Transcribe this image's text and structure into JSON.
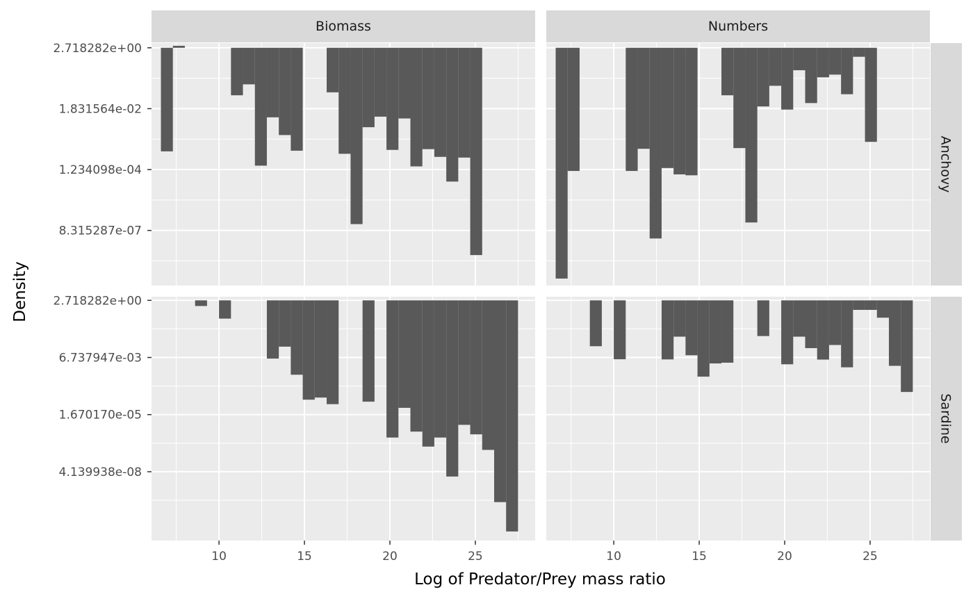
{
  "chart_data": {
    "type": "bar",
    "xlabel": "Log of Predator/Prey mass ratio",
    "ylabel": "Density",
    "y_scale": "log",
    "colors": {
      "bar": "#595959",
      "panel": "#ebebeb",
      "strip": "#d9d9d9",
      "grid": "#ffffff"
    },
    "xlim": [
      6.05,
      28.5
    ],
    "x_ticks": [
      10,
      15,
      20,
      25
    ],
    "x_tick_labels": [
      "10",
      "15",
      "20",
      "25"
    ],
    "columns": [
      "Biomass",
      "Numbers"
    ],
    "rows": [
      "Anchovy",
      "Sardine"
    ],
    "row_axes": [
      {
        "row": "Anchovy",
        "ylim": [
          9e-09,
          4.0
        ],
        "y_ticks": [
          2.718282,
          0.01831564,
          0.0001234098,
          8.315287e-07
        ],
        "y_tick_labels": [
          "2.718282e+00",
          "1.831564e-02",
          "1.234098e-04",
          "8.315287e-07"
        ]
      },
      {
        "row": "Sardine",
        "ylim": [
          3e-11,
          4.0
        ],
        "y_ticks": [
          2.718282,
          0.006737947,
          1.67017e-05,
          4.139938e-08
        ],
        "y_tick_labels": [
          "2.718282e+00",
          "6.737947e-03",
          "1.670170e-05",
          "4.139938e-08"
        ]
      }
    ],
    "panels": [
      {
        "row": "Anchovy",
        "column": "Biomass",
        "x": [
          6.95,
          7.65,
          11.05,
          11.75,
          12.45,
          13.15,
          13.85,
          14.55,
          16.65,
          17.35,
          18.05,
          18.75,
          19.45,
          20.15,
          20.85,
          21.55,
          22.25,
          22.95,
          23.65,
          24.35,
          25.05
        ],
        "y": [
          0.00055,
          3.2,
          0.055,
          0.135,
          0.00017,
          0.009,
          0.0021,
          0.00058,
          0.07,
          0.00045,
          1.4e-06,
          0.004,
          0.0095,
          0.00062,
          0.0082,
          0.00016,
          0.00066,
          0.00035,
          4.6e-05,
          0.00033,
          1.1e-07
        ]
      },
      {
        "row": "Anchovy",
        "column": "Numbers",
        "x": [
          6.95,
          7.65,
          11.05,
          11.75,
          12.45,
          13.15,
          13.85,
          14.55,
          16.65,
          17.35,
          18.05,
          18.75,
          19.45,
          20.15,
          20.85,
          21.55,
          22.25,
          22.95,
          23.65,
          24.35,
          25.05
        ],
        "y": [
          1.6e-08,
          0.00011,
          0.00011,
          0.00068,
          4.3e-07,
          0.00014,
          8.3e-05,
          7.7e-05,
          0.055,
          0.00072,
          1.6e-06,
          0.022,
          0.12,
          0.017,
          0.43,
          0.029,
          0.24,
          0.3,
          0.06,
          1.3,
          0.0012
        ]
      },
      {
        "row": "Sardine",
        "column": "Biomass",
        "x": [
          8.95,
          10.35,
          13.15,
          13.85,
          14.55,
          15.25,
          15.95,
          16.65,
          18.75,
          20.15,
          20.85,
          21.55,
          22.25,
          22.95,
          23.65,
          24.35,
          25.05,
          25.75,
          26.45,
          27.15
        ],
        "y": [
          1.5,
          0.4,
          0.006,
          0.021,
          0.0011,
          8e-05,
          0.0001,
          5e-05,
          6.5e-05,
          1.5e-06,
          3.4e-05,
          2.8e-06,
          5.8e-07,
          1.5e-06,
          2.5e-08,
          5.7e-06,
          2.1e-06,
          4.1e-07,
          1.7e-09,
          7.8e-11
        ]
      },
      {
        "row": "Sardine",
        "column": "Numbers",
        "x": [
          8.95,
          10.35,
          13.15,
          13.85,
          14.55,
          15.25,
          15.95,
          16.65,
          18.75,
          20.15,
          20.85,
          21.55,
          22.25,
          22.95,
          23.65,
          24.35,
          25.05,
          25.75,
          26.45,
          27.15
        ],
        "y": [
          0.022,
          0.0056,
          0.0055,
          0.06,
          0.0085,
          0.0009,
          0.0036,
          0.0039,
          0.064,
          0.0033,
          0.06,
          0.018,
          0.0054,
          0.025,
          0.0024,
          1.0,
          1.0,
          0.44,
          0.0028,
          0.00018
        ]
      }
    ]
  }
}
